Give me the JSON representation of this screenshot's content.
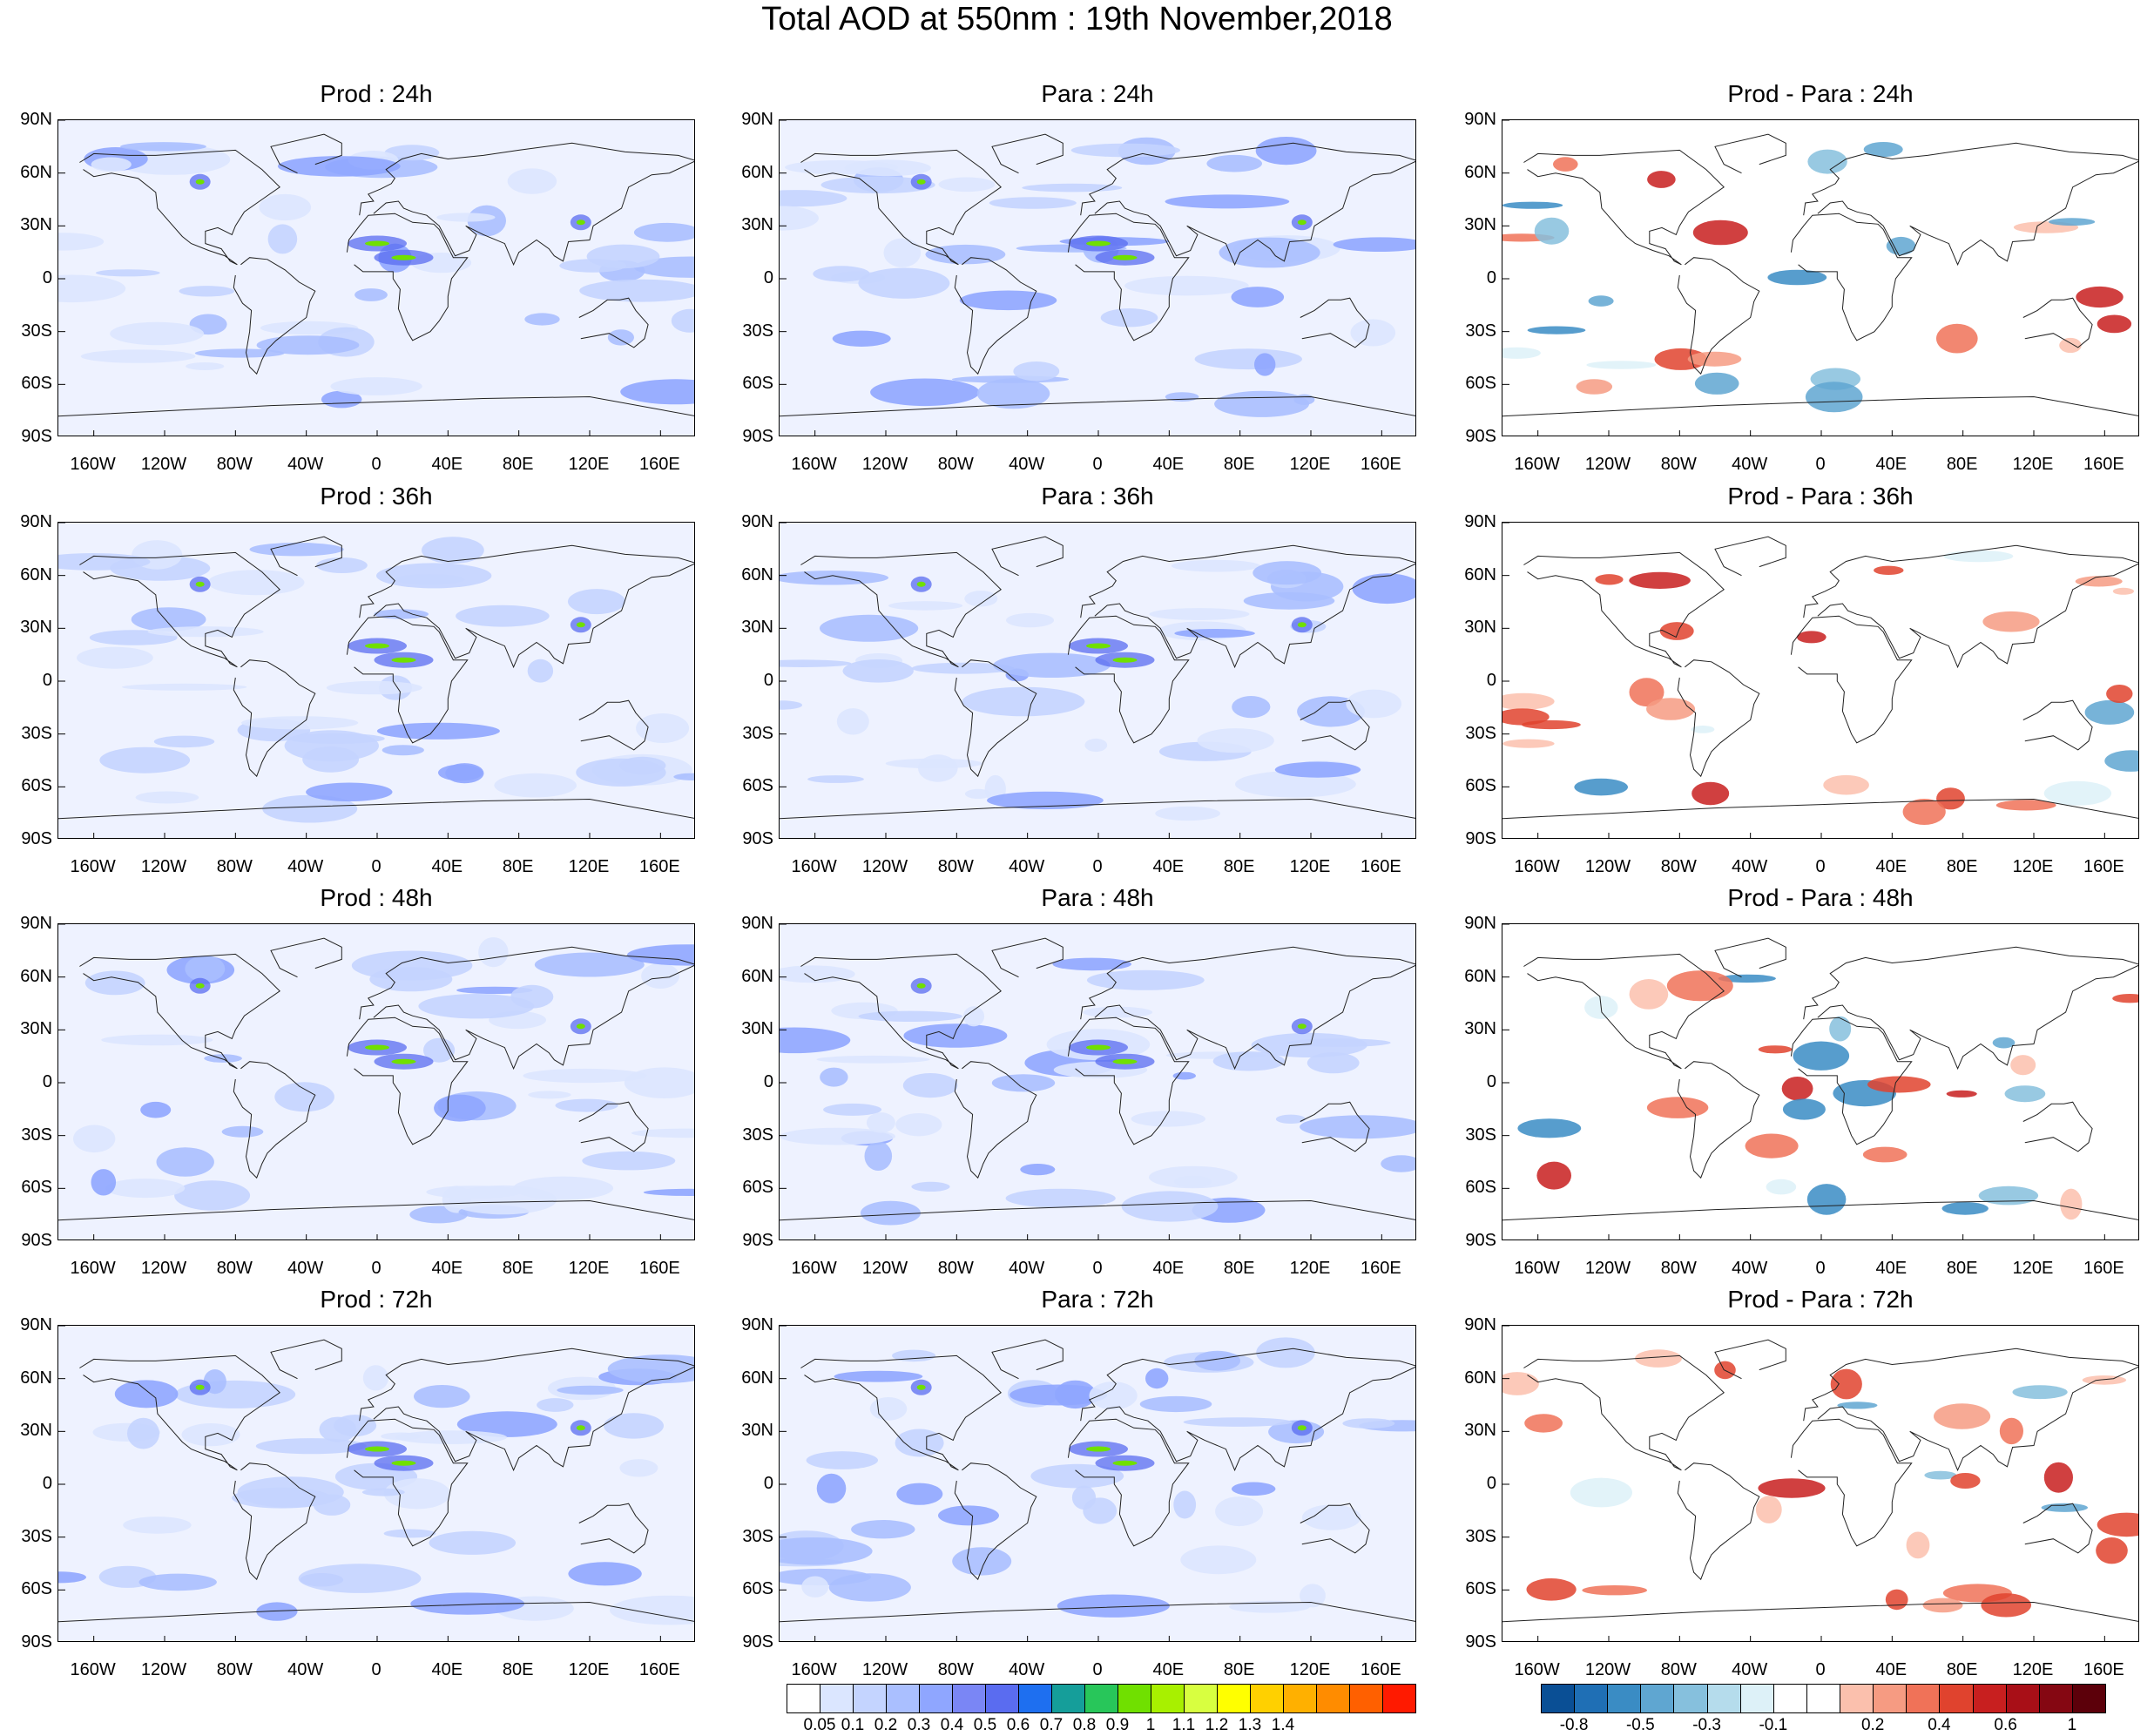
{
  "title": "Total AOD at 550nm : 19th November,2018",
  "panel_titles": [
    "Prod : 24h",
    "Para : 24h",
    "Prod - Para : 24h",
    "Prod : 36h",
    "Para : 36h",
    "Prod - Para : 36h",
    "Prod : 48h",
    "Para : 48h",
    "Prod - Para : 48h",
    "Prod : 72h",
    "Para : 72h",
    "Prod - Para : 72h"
  ],
  "lat_labels": [
    "90N",
    "60N",
    "30N",
    "0",
    "30S",
    "60S",
    "90S"
  ],
  "lon_labels": [
    "160W",
    "120W",
    "80W",
    "40W",
    "0",
    "40E",
    "80E",
    "120E",
    "160E"
  ],
  "aod_colorbar": {
    "labels": [
      "0.05",
      "0.1",
      "0.2",
      "0.3",
      "0.4",
      "0.5",
      "0.6",
      "0.7",
      "0.8",
      "0.9",
      "1",
      "1.1",
      "1.2",
      "1.3",
      "1.4"
    ],
    "colors": [
      "#ffffff",
      "#dbe6ff",
      "#c4d4ff",
      "#aabfff",
      "#8fa6ff",
      "#7a86f5",
      "#5a6cf0",
      "#1e6ff0",
      "#159e9a",
      "#28c65a",
      "#70e000",
      "#a8f000",
      "#d8ff40",
      "#ffff00",
      "#ffd000",
      "#ffb000",
      "#ff8c00",
      "#ff6000",
      "#ff1a00"
    ]
  },
  "diff_colorbar": {
    "labels": [
      "-0.8",
      "-0.5",
      "-0.3",
      "-0.1",
      "0.2",
      "0.4",
      "0.6",
      "1"
    ],
    "colors": [
      "#0a4f95",
      "#1f6fb5",
      "#3a8cc4",
      "#5fa6d1",
      "#86c0dd",
      "#b5dcec",
      "#ddf1f8",
      "#ffffff",
      "#ffffff",
      "#fbc0ad",
      "#f69b82",
      "#f07258",
      "#e0432e",
      "#c81f1f",
      "#a80f17",
      "#850712",
      "#5c000a"
    ]
  }
}
